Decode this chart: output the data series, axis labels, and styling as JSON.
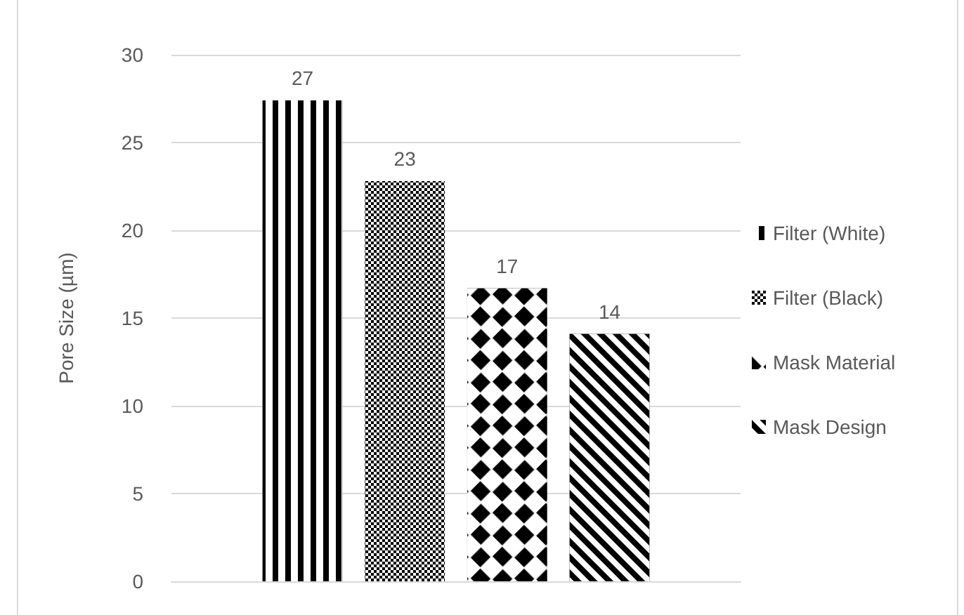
{
  "chart_data": {
    "type": "bar",
    "ylabel": "Pore Size (µm)",
    "categories": [
      null
    ],
    "series": [
      {
        "name": "Filter (White)",
        "color": "#000000",
        "values": [
          27.4
        ],
        "value_labels": [
          "27"
        ]
      },
      {
        "name": "Filter (Black)",
        "color": "#000000",
        "values": [
          22.8
        ],
        "value_labels": [
          "23"
        ]
      },
      {
        "name": "Mask Material",
        "color": "#000000",
        "values": [
          16.7
        ],
        "value_labels": [
          "17"
        ]
      },
      {
        "name": "Mask Design",
        "color": "#000000",
        "values": [
          14.1
        ],
        "value_labels": [
          "14"
        ]
      }
    ],
    "ylim": [
      0,
      30
    ],
    "yticks": [
      0,
      5,
      10,
      15,
      20,
      25,
      30
    ],
    "grid": "y",
    "legend": "right"
  }
}
